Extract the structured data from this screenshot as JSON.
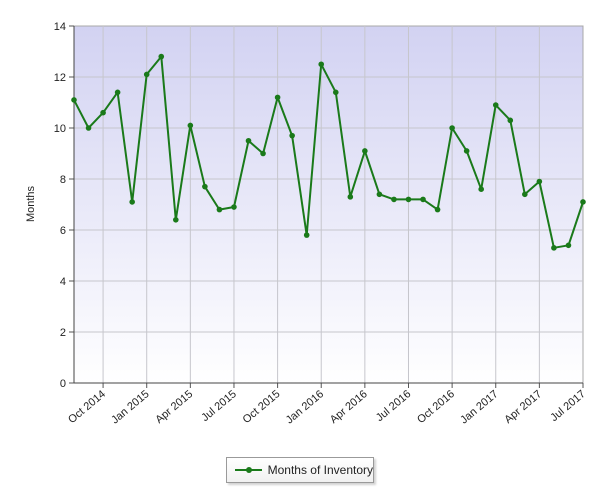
{
  "chart_data": {
    "type": "line",
    "ylabel": "Months",
    "xlabel": "",
    "ylim": [
      0,
      14
    ],
    "yticks": [
      0,
      2,
      4,
      6,
      8,
      10,
      12,
      14
    ],
    "grid": true,
    "legend_position": "bottom",
    "x_tick_labels": [
      "Oct 2014",
      "Jan 2015",
      "Apr 2015",
      "Jul 2015",
      "Oct 2015",
      "Jan 2016",
      "Apr 2016",
      "Jul 2016",
      "Oct 2016",
      "Jan 2017",
      "Apr 2017",
      "Jul 2017"
    ],
    "x": [
      "Aug 2014",
      "Sep 2014",
      "Oct 2014",
      "Nov 2014",
      "Dec 2014",
      "Jan 2015",
      "Feb 2015",
      "Mar 2015",
      "Apr 2015",
      "May 2015",
      "Jun 2015",
      "Jul 2015",
      "Aug 2015",
      "Sep 2015",
      "Oct 2015",
      "Nov 2015",
      "Dec 2015",
      "Jan 2016",
      "Feb 2016",
      "Mar 2016",
      "Apr 2016",
      "May 2016",
      "Jun 2016",
      "Jul 2016",
      "Aug 2016",
      "Sep 2016",
      "Oct 2016",
      "Nov 2016",
      "Dec 2016",
      "Jan 2017",
      "Feb 2017",
      "Mar 2017",
      "Apr 2017",
      "May 2017",
      "Jun 2017",
      "Jul 2017"
    ],
    "series": [
      {
        "name": "Months of Inventory",
        "color": "#1a7a1a",
        "values": [
          11.1,
          10.0,
          10.6,
          11.4,
          7.1,
          12.1,
          12.8,
          6.4,
          10.1,
          7.7,
          6.8,
          6.9,
          9.5,
          9.0,
          11.2,
          9.7,
          5.8,
          12.5,
          11.4,
          7.3,
          9.1,
          7.4,
          7.2,
          7.2,
          7.2,
          6.8,
          10.0,
          9.1,
          7.6,
          10.9,
          10.3,
          7.4,
          7.9,
          5.3,
          5.4,
          7.1
        ]
      }
    ]
  },
  "legend": {
    "label": "Months of Inventory"
  }
}
